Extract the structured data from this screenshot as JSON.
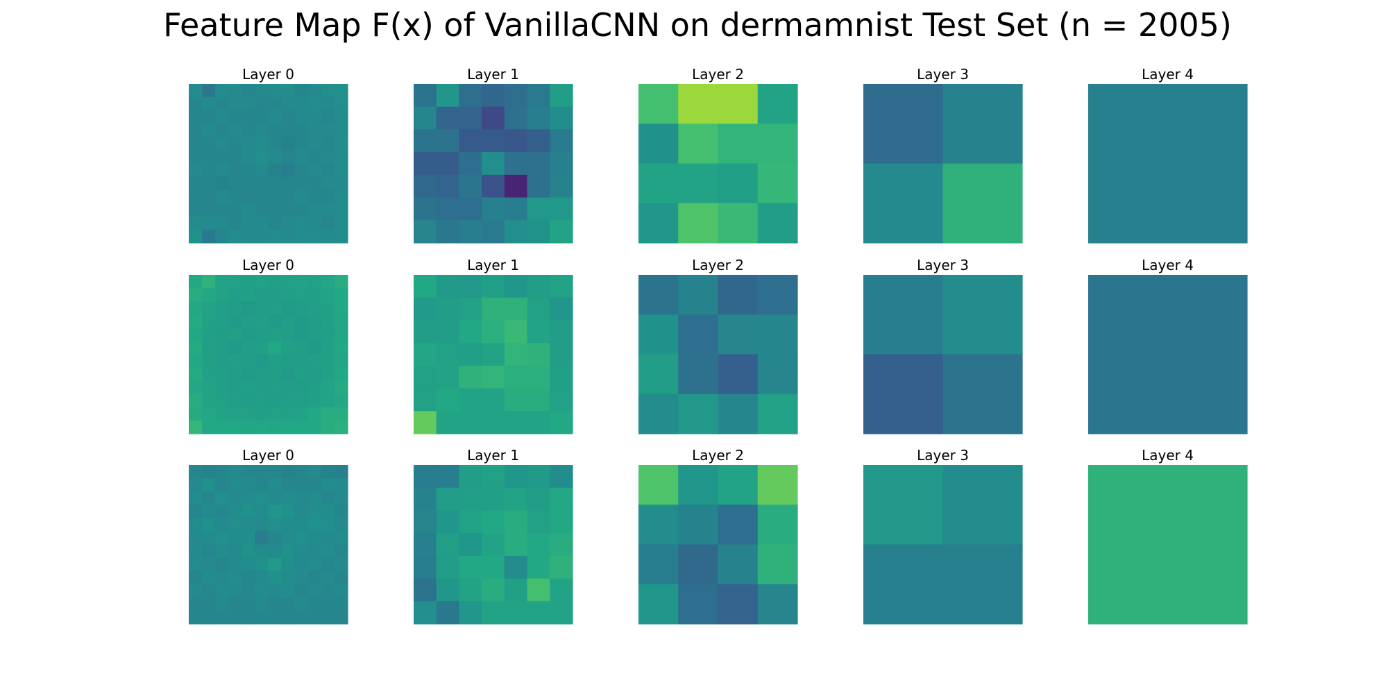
{
  "title": "Feature Map F(x) of VanillaCNN on dermamnist Test Set (n = 2005)",
  "colormap": "viridis",
  "colormap_range": [
    0,
    1
  ],
  "chart_data": {
    "type": "heatmap",
    "title": "Feature Map F(x) of VanillaCNN on dermamnist Test Set (n = 2005)",
    "rows": 3,
    "columns": [
      "Layer 0",
      "Layer 1",
      "Layer 2",
      "Layer 3",
      "Layer 4"
    ],
    "panels": [
      [
        {
          "label": "Layer 0",
          "grid": [
            [
              0.48,
              0.4,
              0.48,
              0.47,
              0.46,
              0.47,
              0.48,
              0.49,
              0.46,
              0.47,
              0.49,
              0.5
            ],
            [
              0.46,
              0.47,
              0.46,
              0.47,
              0.47,
              0.45,
              0.46,
              0.47,
              0.47,
              0.48,
              0.47,
              0.49
            ],
            [
              0.46,
              0.45,
              0.47,
              0.46,
              0.45,
              0.46,
              0.47,
              0.45,
              0.47,
              0.47,
              0.46,
              0.48
            ],
            [
              0.45,
              0.47,
              0.45,
              0.47,
              0.46,
              0.47,
              0.45,
              0.46,
              0.46,
              0.47,
              0.47,
              0.48
            ],
            [
              0.46,
              0.46,
              0.47,
              0.46,
              0.47,
              0.48,
              0.46,
              0.44,
              0.46,
              0.47,
              0.46,
              0.49
            ],
            [
              0.45,
              0.46,
              0.45,
              0.46,
              0.47,
              0.49,
              0.47,
              0.45,
              0.47,
              0.46,
              0.47,
              0.48
            ],
            [
              0.47,
              0.46,
              0.47,
              0.45,
              0.46,
              0.47,
              0.44,
              0.42,
              0.45,
              0.47,
              0.46,
              0.48
            ],
            [
              0.45,
              0.46,
              0.44,
              0.46,
              0.46,
              0.45,
              0.46,
              0.46,
              0.46,
              0.45,
              0.47,
              0.47
            ],
            [
              0.46,
              0.45,
              0.47,
              0.46,
              0.45,
              0.46,
              0.45,
              0.46,
              0.47,
              0.46,
              0.46,
              0.48
            ],
            [
              0.46,
              0.46,
              0.45,
              0.46,
              0.47,
              0.46,
              0.46,
              0.45,
              0.46,
              0.47,
              0.47,
              0.48
            ],
            [
              0.48,
              0.47,
              0.47,
              0.46,
              0.47,
              0.47,
              0.46,
              0.47,
              0.48,
              0.47,
              0.46,
              0.48
            ],
            [
              0.5,
              0.41,
              0.46,
              0.48,
              0.47,
              0.47,
              0.48,
              0.47,
              0.48,
              0.48,
              0.47,
              0.48
            ]
          ]
        },
        {
          "label": "Layer 1",
          "grid": [
            [
              0.38,
              0.52,
              0.36,
              0.33,
              0.36,
              0.41,
              0.55
            ],
            [
              0.46,
              0.32,
              0.32,
              0.22,
              0.37,
              0.42,
              0.48
            ],
            [
              0.38,
              0.38,
              0.28,
              0.28,
              0.27,
              0.3,
              0.41
            ],
            [
              0.29,
              0.29,
              0.36,
              0.49,
              0.37,
              0.37,
              0.43
            ],
            [
              0.34,
              0.32,
              0.39,
              0.25,
              0.1,
              0.37,
              0.44
            ],
            [
              0.38,
              0.36,
              0.36,
              0.43,
              0.42,
              0.53,
              0.53
            ],
            [
              0.45,
              0.4,
              0.42,
              0.41,
              0.49,
              0.51,
              0.58
            ]
          ]
        },
        {
          "label": "Layer 2",
          "grid": [
            [
              0.7,
              0.85,
              0.85,
              0.58
            ],
            [
              0.5,
              0.7,
              0.65,
              0.65
            ],
            [
              0.58,
              0.58,
              0.56,
              0.66
            ],
            [
              0.52,
              0.72,
              0.67,
              0.55
            ]
          ]
        },
        {
          "label": "Layer 3",
          "grid": [
            [
              0.35,
              0.44
            ],
            [
              0.47,
              0.64
            ]
          ]
        },
        {
          "label": "Layer 4",
          "grid": [
            [
              0.43
            ]
          ]
        }
      ],
      [
        {
          "label": "Layer 0",
          "grid": [
            [
              0.6,
              0.64,
              0.58,
              0.57,
              0.56,
              0.57,
              0.56,
              0.57,
              0.58,
              0.57,
              0.59,
              0.62
            ],
            [
              0.62,
              0.6,
              0.58,
              0.56,
              0.57,
              0.55,
              0.55,
              0.56,
              0.57,
              0.56,
              0.58,
              0.6
            ],
            [
              0.6,
              0.58,
              0.56,
              0.55,
              0.54,
              0.55,
              0.56,
              0.54,
              0.55,
              0.56,
              0.57,
              0.6
            ],
            [
              0.61,
              0.57,
              0.56,
              0.54,
              0.55,
              0.56,
              0.54,
              0.55,
              0.54,
              0.55,
              0.57,
              0.59
            ],
            [
              0.6,
              0.57,
              0.55,
              0.56,
              0.54,
              0.55,
              0.56,
              0.55,
              0.54,
              0.55,
              0.56,
              0.59
            ],
            [
              0.61,
              0.56,
              0.55,
              0.54,
              0.55,
              0.56,
              0.6,
              0.56,
              0.55,
              0.54,
              0.57,
              0.6
            ],
            [
              0.6,
              0.57,
              0.55,
              0.56,
              0.55,
              0.54,
              0.56,
              0.55,
              0.55,
              0.56,
              0.57,
              0.59
            ],
            [
              0.61,
              0.57,
              0.56,
              0.55,
              0.54,
              0.55,
              0.55,
              0.54,
              0.56,
              0.55,
              0.57,
              0.6
            ],
            [
              0.6,
              0.58,
              0.56,
              0.55,
              0.56,
              0.55,
              0.56,
              0.55,
              0.55,
              0.56,
              0.58,
              0.61
            ],
            [
              0.62,
              0.58,
              0.57,
              0.56,
              0.55,
              0.56,
              0.55,
              0.56,
              0.56,
              0.57,
              0.58,
              0.6
            ],
            [
              0.61,
              0.6,
              0.58,
              0.57,
              0.57,
              0.56,
              0.57,
              0.57,
              0.58,
              0.6,
              0.62,
              0.62
            ],
            [
              0.66,
              0.6,
              0.6,
              0.6,
              0.59,
              0.6,
              0.59,
              0.6,
              0.6,
              0.6,
              0.62,
              0.63
            ]
          ]
        },
        {
          "label": "Layer 1",
          "grid": [
            [
              0.6,
              0.54,
              0.53,
              0.56,
              0.52,
              0.55,
              0.58
            ],
            [
              0.54,
              0.55,
              0.57,
              0.64,
              0.64,
              0.57,
              0.52
            ],
            [
              0.55,
              0.55,
              0.6,
              0.63,
              0.67,
              0.58,
              0.55
            ],
            [
              0.59,
              0.57,
              0.56,
              0.58,
              0.65,
              0.64,
              0.55
            ],
            [
              0.57,
              0.58,
              0.64,
              0.65,
              0.63,
              0.63,
              0.56
            ],
            [
              0.57,
              0.6,
              0.58,
              0.58,
              0.62,
              0.62,
              0.57
            ],
            [
              0.76,
              0.58,
              0.58,
              0.58,
              0.58,
              0.58,
              0.6
            ]
          ]
        },
        {
          "label": "Layer 2",
          "grid": [
            [
              0.38,
              0.44,
              0.33,
              0.36
            ],
            [
              0.5,
              0.36,
              0.45,
              0.46
            ],
            [
              0.55,
              0.37,
              0.3,
              0.45
            ],
            [
              0.48,
              0.53,
              0.46,
              0.57
            ]
          ]
        },
        {
          "label": "Layer 3",
          "grid": [
            [
              0.42,
              0.48
            ],
            [
              0.3,
              0.38
            ]
          ]
        },
        {
          "label": "Layer 4",
          "grid": [
            [
              0.39
            ]
          ]
        }
      ],
      [
        {
          "label": "Layer 0",
          "grid": [
            [
              0.46,
              0.44,
              0.46,
              0.47,
              0.46,
              0.45,
              0.46,
              0.44,
              0.46,
              0.47,
              0.44,
              0.43
            ],
            [
              0.47,
              0.5,
              0.46,
              0.48,
              0.47,
              0.46,
              0.48,
              0.46,
              0.45,
              0.46,
              0.48,
              0.47
            ],
            [
              0.48,
              0.46,
              0.49,
              0.47,
              0.48,
              0.49,
              0.47,
              0.48,
              0.47,
              0.48,
              0.46,
              0.47
            ],
            [
              0.46,
              0.47,
              0.46,
              0.48,
              0.5,
              0.48,
              0.52,
              0.5,
              0.47,
              0.49,
              0.48,
              0.46
            ],
            [
              0.48,
              0.5,
              0.47,
              0.49,
              0.48,
              0.47,
              0.49,
              0.48,
              0.48,
              0.5,
              0.49,
              0.47
            ],
            [
              0.47,
              0.48,
              0.5,
              0.48,
              0.49,
              0.42,
              0.46,
              0.48,
              0.5,
              0.48,
              0.47,
              0.48
            ],
            [
              0.47,
              0.46,
              0.48,
              0.47,
              0.5,
              0.48,
              0.47,
              0.5,
              0.48,
              0.47,
              0.48,
              0.46
            ],
            [
              0.48,
              0.47,
              0.46,
              0.47,
              0.48,
              0.5,
              0.54,
              0.49,
              0.47,
              0.48,
              0.46,
              0.47
            ],
            [
              0.46,
              0.48,
              0.47,
              0.48,
              0.46,
              0.47,
              0.5,
              0.48,
              0.47,
              0.46,
              0.47,
              0.46
            ],
            [
              0.47,
              0.46,
              0.48,
              0.47,
              0.46,
              0.48,
              0.47,
              0.48,
              0.46,
              0.47,
              0.46,
              0.47
            ],
            [
              0.45,
              0.46,
              0.47,
              0.45,
              0.46,
              0.47,
              0.45,
              0.46,
              0.47,
              0.46,
              0.45,
              0.46
            ],
            [
              0.46,
              0.45,
              0.46,
              0.46,
              0.45,
              0.46,
              0.46,
              0.45,
              0.46,
              0.46,
              0.45,
              0.45
            ]
          ]
        },
        {
          "label": "Layer 1",
          "grid": [
            [
              0.42,
              0.42,
              0.55,
              0.57,
              0.52,
              0.54,
              0.48
            ],
            [
              0.44,
              0.55,
              0.56,
              0.56,
              0.58,
              0.55,
              0.6
            ],
            [
              0.45,
              0.52,
              0.58,
              0.6,
              0.62,
              0.57,
              0.6
            ],
            [
              0.43,
              0.56,
              0.52,
              0.58,
              0.62,
              0.6,
              0.62
            ],
            [
              0.42,
              0.55,
              0.6,
              0.6,
              0.48,
              0.6,
              0.64
            ],
            [
              0.38,
              0.52,
              0.58,
              0.62,
              0.56,
              0.7,
              0.58
            ],
            [
              0.49,
              0.4,
              0.52,
              0.58,
              0.58,
              0.58,
              0.58
            ]
          ]
        },
        {
          "label": "Layer 2",
          "grid": [
            [
              0.72,
              0.52,
              0.58,
              0.76
            ],
            [
              0.48,
              0.44,
              0.36,
              0.62
            ],
            [
              0.42,
              0.34,
              0.44,
              0.64
            ],
            [
              0.52,
              0.36,
              0.32,
              0.45
            ]
          ]
        },
        {
          "label": "Layer 3",
          "grid": [
            [
              0.53,
              0.48
            ],
            [
              0.43,
              0.43
            ]
          ]
        },
        {
          "label": "Layer 4",
          "grid": [
            [
              0.64
            ]
          ]
        }
      ]
    ]
  }
}
